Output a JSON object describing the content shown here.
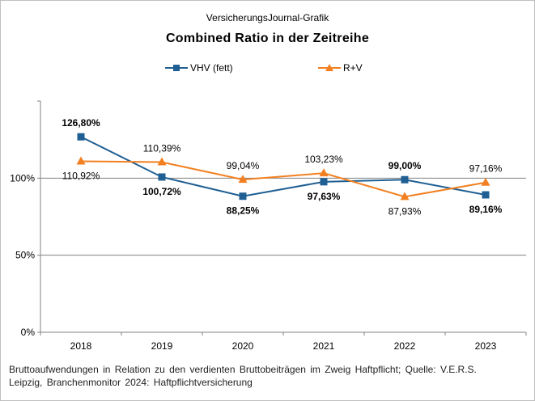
{
  "header": {
    "source": "VersicherungsJournal-Grafik",
    "title": "Combined  Ratio  in der Zeitreihe"
  },
  "colors": {
    "vhv": "#1f5f93",
    "rv": "#f28021",
    "grid": "#808080"
  },
  "chart_data": {
    "type": "line",
    "title": "Combined  Ratio  in der Zeitreihe",
    "categories": [
      "2018",
      "2019",
      "2020",
      "2021",
      "2022",
      "2023"
    ],
    "series": [
      {
        "name": "VHV (fett)",
        "values": [
          126.8,
          100.72,
          88.25,
          97.63,
          99.0,
          89.16
        ],
        "labels": [
          "126,80%",
          "100,72%",
          "88,25%",
          "97,63%",
          "99,00%",
          "89,16%"
        ],
        "marker": "square",
        "bold_labels": true
      },
      {
        "name": "R+V",
        "values": [
          110.92,
          110.39,
          99.04,
          103.23,
          87.93,
          97.16
        ],
        "labels": [
          "110,92%",
          "110,39%",
          "99,04%",
          "103,23%",
          "87,93%",
          "97,16%"
        ],
        "marker": "triangle",
        "bold_labels": false
      }
    ],
    "ylim": [
      0,
      150
    ],
    "yticks": [
      0,
      50,
      100
    ],
    "ytick_labels": [
      "0%",
      "50%",
      "100%"
    ],
    "gridlines": [
      50,
      100
    ],
    "legend": "top-center"
  },
  "footnote": {
    "line1": "Bruttoaufwendungen  in Relation zu den verdienten  Bruttobeiträgen  im Zweig Haftpflicht;  Quelle: V.E.R.S.",
    "line2": "Leipzig, Branchenmonitor  2024:  Haftpflichtversicherung"
  }
}
